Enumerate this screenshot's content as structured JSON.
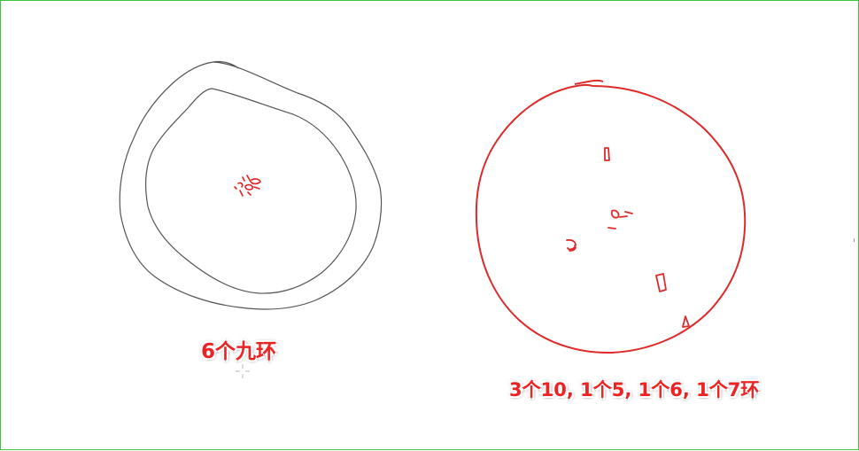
{
  "targets": [
    {
      "caption": "6个九环",
      "outline_color": "#555555",
      "mark_color": "#dd2222"
    },
    {
      "caption": "3个10, 1个5, 1个6, 1个7环",
      "outline_color": "#dd2a2a",
      "mark_color": "#dd2a2a"
    }
  ],
  "cursor": "crosshair-cursor-icon"
}
